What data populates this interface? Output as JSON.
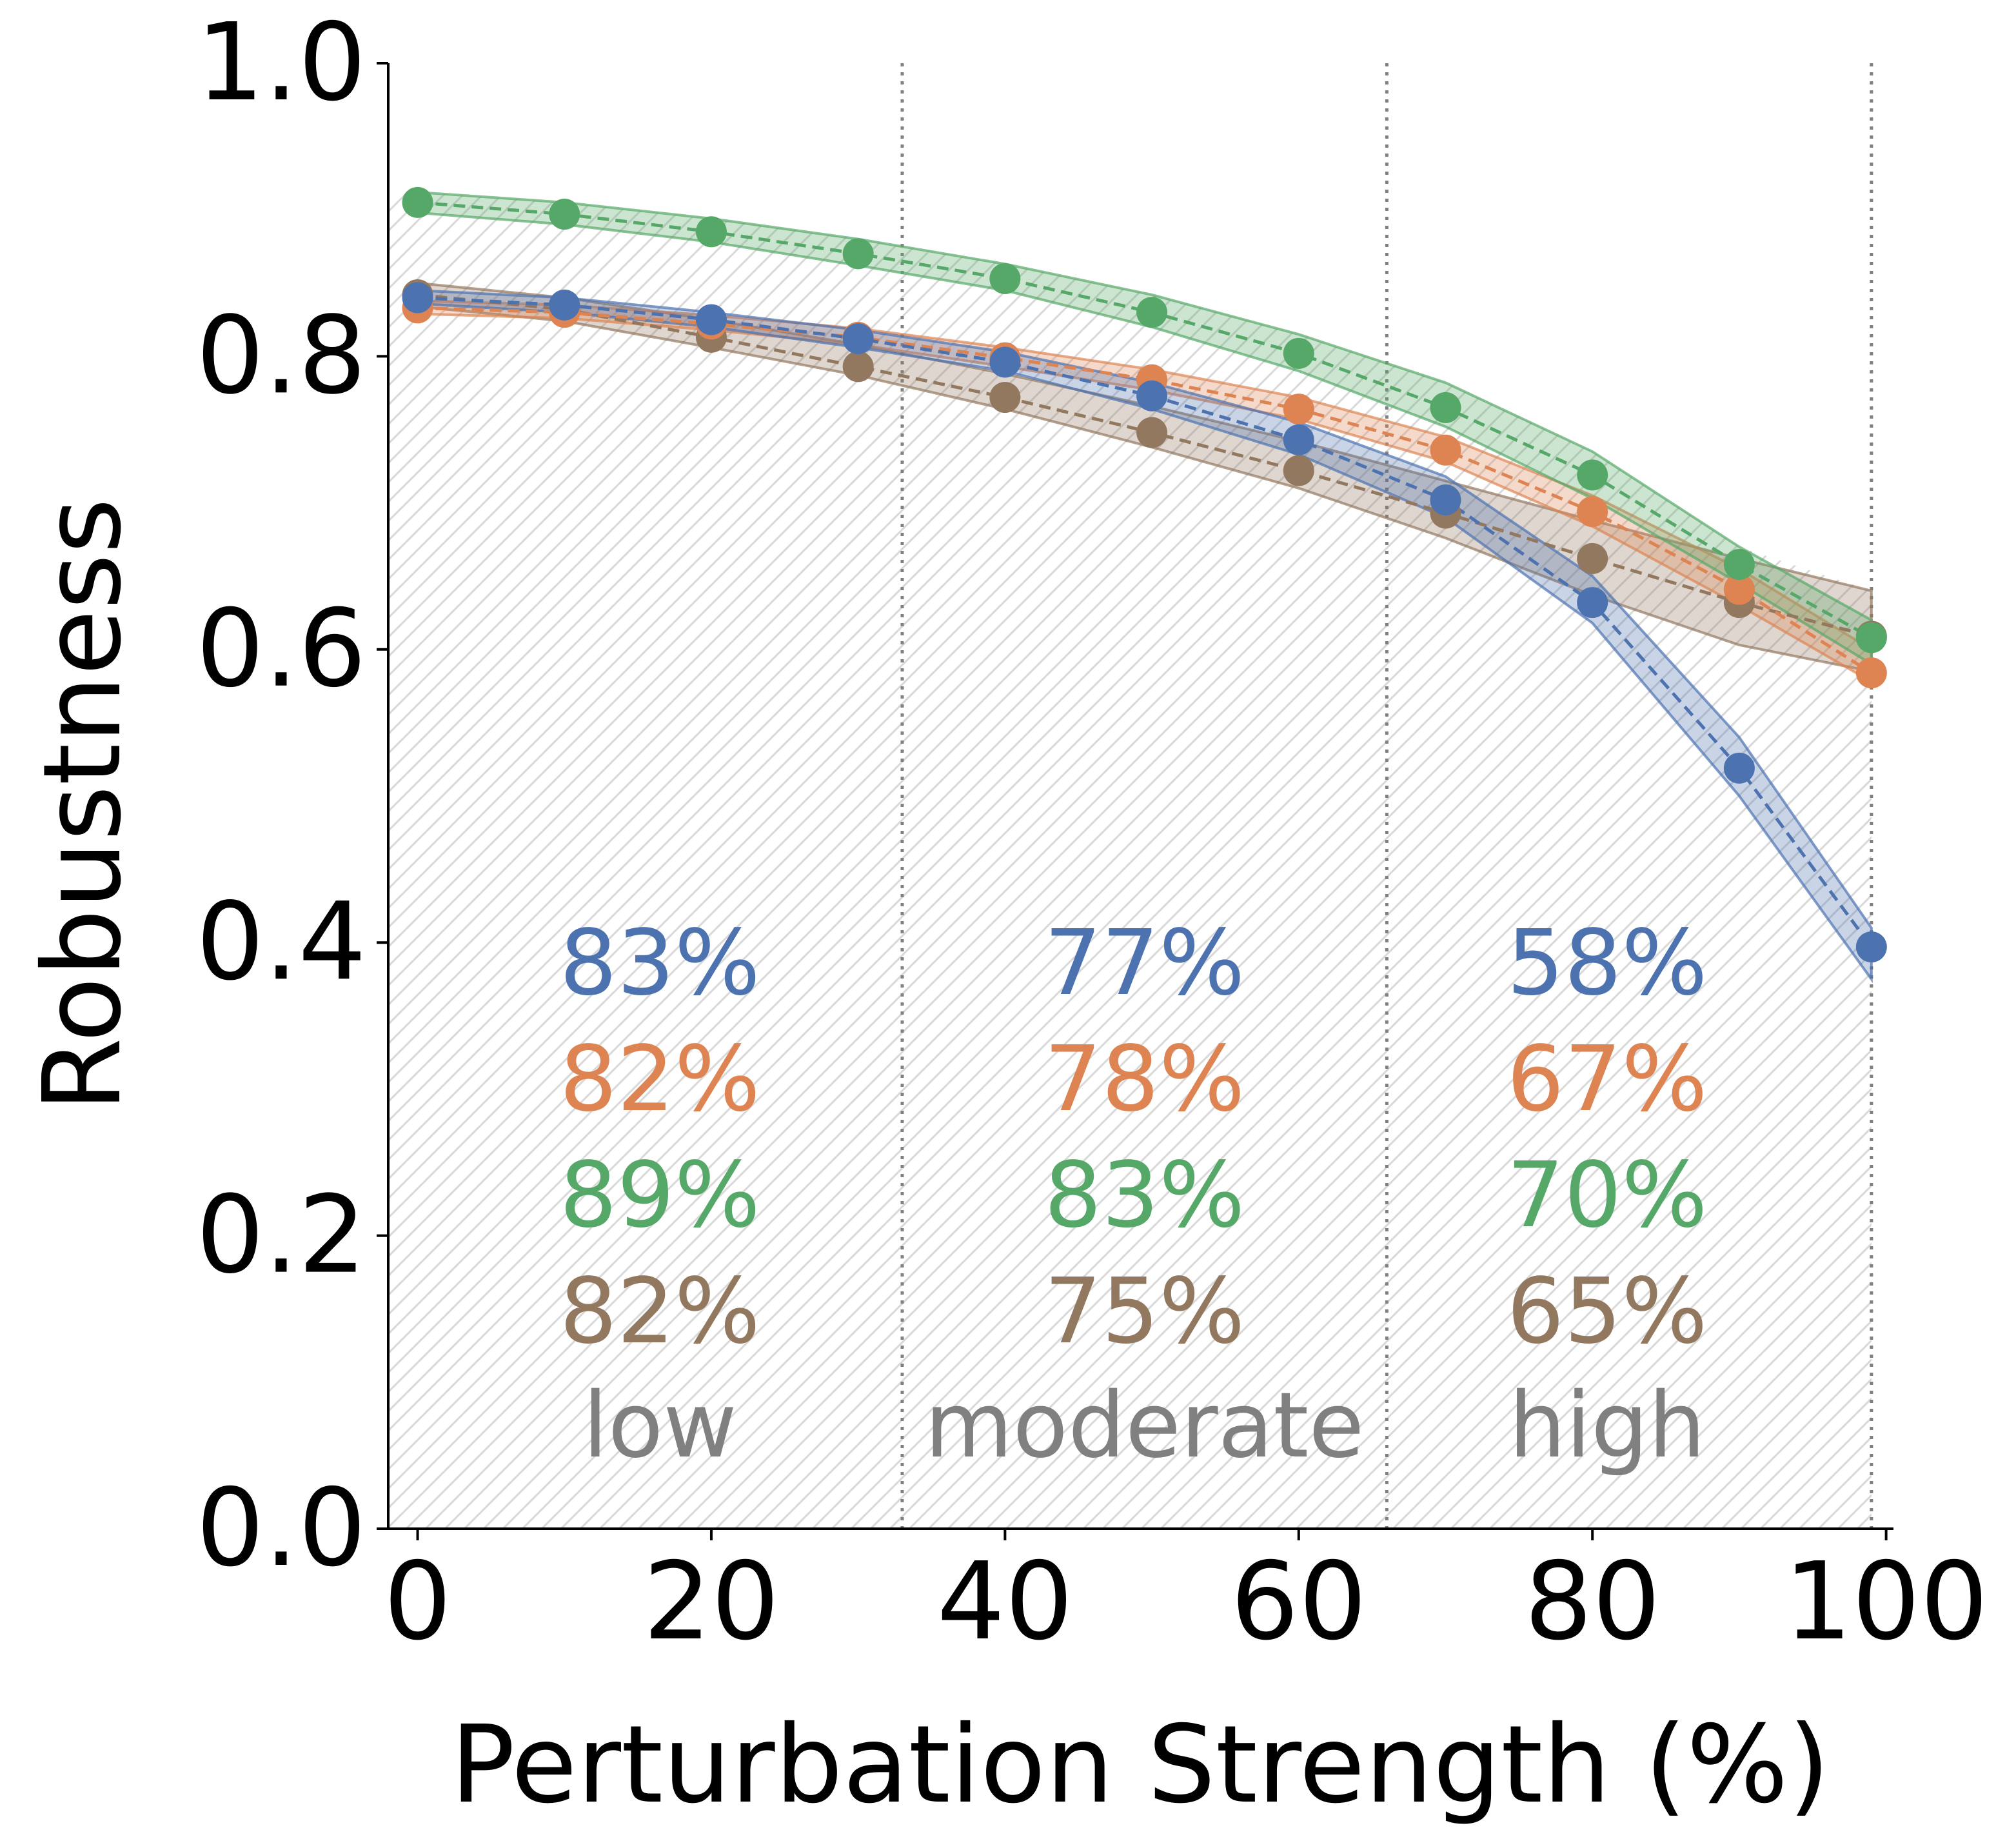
{
  "chart_data": {
    "type": "line",
    "xlabel": "Perturbation Strength (%)",
    "ylabel": "Robustness",
    "xlim": [
      -2,
      100.5
    ],
    "ylim": [
      0.0,
      1.0
    ],
    "x_ticks": [
      0,
      20,
      40,
      60,
      80,
      100
    ],
    "y_ticks": [
      0.0,
      0.2,
      0.4,
      0.6,
      0.8,
      1.0
    ],
    "x_tick_labels": [
      "0",
      "20",
      "40",
      "60",
      "80",
      "100"
    ],
    "y_tick_labels": [
      "0.0",
      "0.2",
      "0.4",
      "0.6",
      "0.8",
      "1.0"
    ],
    "grid": false,
    "x": [
      0,
      10,
      20,
      30,
      40,
      50,
      60,
      70,
      80,
      90,
      99
    ],
    "series": [
      {
        "color": "#4c72b0",
        "values": [
          0.84,
          0.835,
          0.825,
          0.812,
          0.796,
          0.773,
          0.743,
          0.702,
          0.632,
          0.519,
          0.397
        ],
        "band_upper": [
          0.845,
          0.84,
          0.83,
          0.818,
          0.803,
          0.782,
          0.755,
          0.718,
          0.65,
          0.54,
          0.41
        ],
        "band_lower": [
          0.836,
          0.83,
          0.82,
          0.806,
          0.79,
          0.764,
          0.733,
          0.69,
          0.618,
          0.5,
          0.375
        ]
      },
      {
        "color": "#dd8452",
        "values": [
          0.833,
          0.83,
          0.822,
          0.813,
          0.799,
          0.784,
          0.764,
          0.736,
          0.694,
          0.641,
          0.584
        ],
        "band_upper": [
          0.838,
          0.835,
          0.828,
          0.819,
          0.806,
          0.791,
          0.772,
          0.745,
          0.705,
          0.655,
          0.6
        ],
        "band_lower": [
          0.829,
          0.826,
          0.818,
          0.808,
          0.793,
          0.777,
          0.757,
          0.728,
          0.684,
          0.63,
          0.578
        ]
      },
      {
        "color": "#55a868",
        "values": [
          0.905,
          0.897,
          0.885,
          0.87,
          0.853,
          0.83,
          0.802,
          0.765,
          0.719,
          0.658,
          0.608
        ],
        "band_upper": [
          0.912,
          0.905,
          0.894,
          0.88,
          0.863,
          0.842,
          0.815,
          0.782,
          0.735,
          0.67,
          0.62
        ],
        "band_lower": [
          0.898,
          0.89,
          0.878,
          0.862,
          0.845,
          0.82,
          0.79,
          0.752,
          0.703,
          0.645,
          0.59
        ]
      },
      {
        "color": "#937860",
        "values": [
          0.842,
          0.832,
          0.813,
          0.793,
          0.772,
          0.748,
          0.722,
          0.693,
          0.662,
          0.632,
          0.609
        ],
        "band_upper": [
          0.85,
          0.84,
          0.825,
          0.808,
          0.788,
          0.766,
          0.742,
          0.715,
          0.688,
          0.662,
          0.64
        ],
        "band_lower": [
          0.834,
          0.824,
          0.806,
          0.787,
          0.764,
          0.738,
          0.71,
          0.676,
          0.637,
          0.603,
          0.585
        ]
      }
    ],
    "region_boundaries": [
      33,
      66,
      99
    ],
    "regions": [
      {
        "label": "low",
        "x_center": 16.5,
        "percentages": [
          "83%",
          "82%",
          "89%",
          "82%"
        ]
      },
      {
        "label": "moderate",
        "x_center": 49.5,
        "percentages": [
          "77%",
          "78%",
          "83%",
          "75%"
        ]
      },
      {
        "label": "high",
        "x_center": 81.0,
        "percentages": [
          "58%",
          "67%",
          "70%",
          "65%"
        ]
      }
    ],
    "region_label_color": "#808080",
    "hatch_color": "#d9d9d9",
    "boundary_line_color": "#808080"
  }
}
